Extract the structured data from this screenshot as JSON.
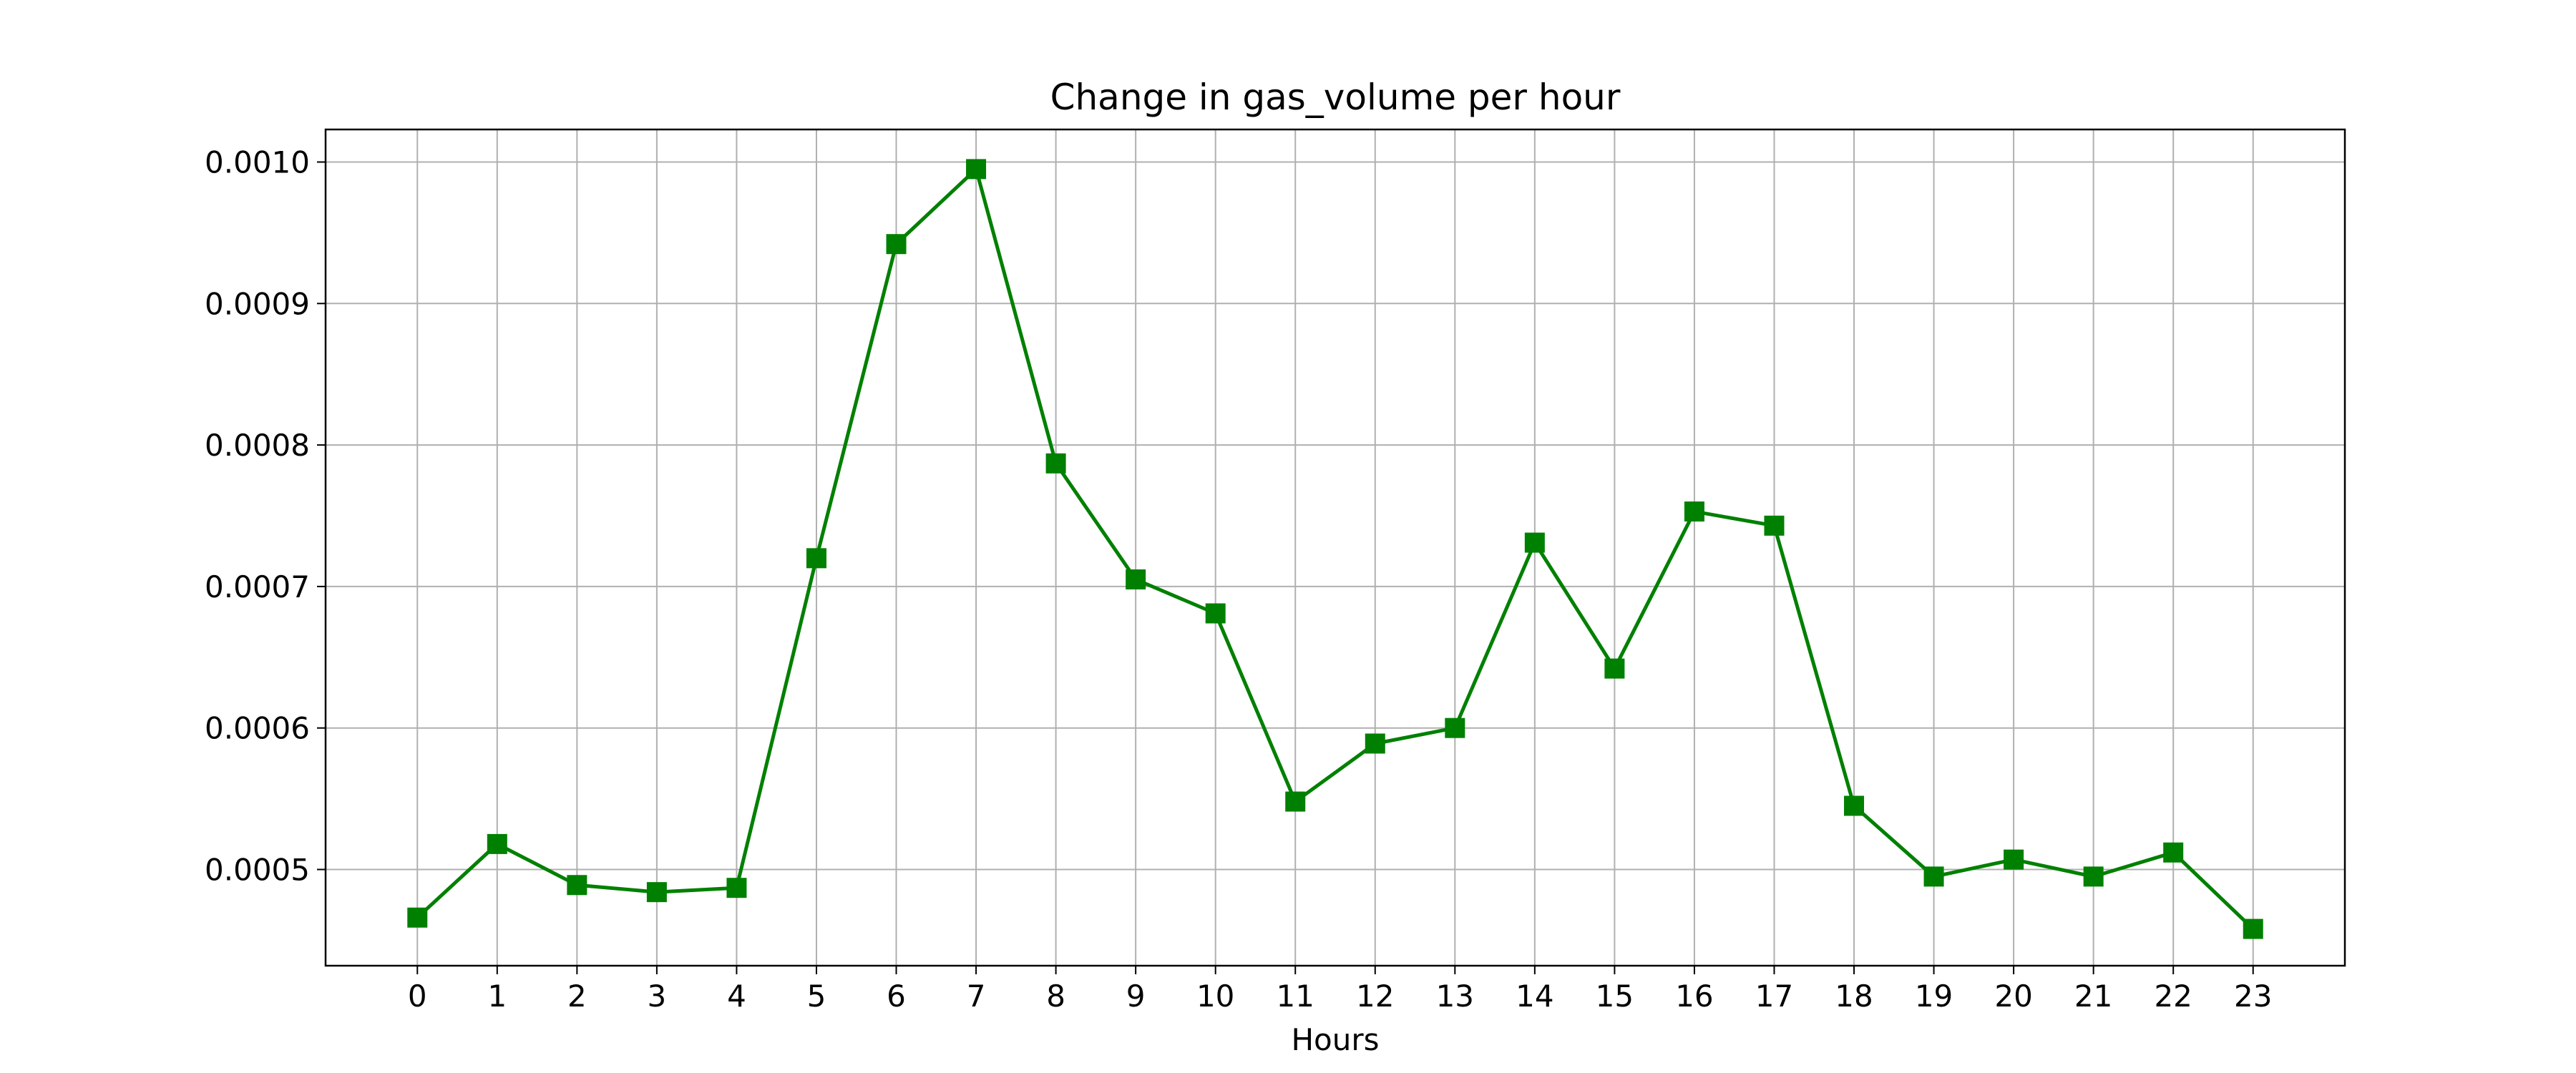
{
  "chart_data": {
    "type": "line",
    "title": "Change in gas_volume per hour",
    "xlabel": "Hours",
    "ylabel": "",
    "x": [
      0,
      1,
      2,
      3,
      4,
      5,
      6,
      7,
      8,
      9,
      10,
      11,
      12,
      13,
      14,
      15,
      16,
      17,
      18,
      19,
      20,
      21,
      22,
      23
    ],
    "x_tick_labels": [
      "0",
      "1",
      "2",
      "3",
      "4",
      "5",
      "6",
      "7",
      "8",
      "9",
      "10",
      "11",
      "12",
      "13",
      "14",
      "15",
      "16",
      "17",
      "18",
      "19",
      "20",
      "21",
      "22",
      "23"
    ],
    "y_ticks": [
      0.0005,
      0.0006,
      0.0007,
      0.0008,
      0.0009,
      0.001
    ],
    "y_tick_labels": [
      "0.0005",
      "0.0006",
      "0.0007",
      "0.0008",
      "0.0009",
      "0.0010"
    ],
    "xlim": [
      -1.15,
      24.15
    ],
    "ylim": [
      0.000432,
      0.001023
    ],
    "grid": true,
    "series": [
      {
        "color": "#008000",
        "marker": "square",
        "values": [
          0.000466,
          0.000518,
          0.000489,
          0.000484,
          0.000487,
          0.00072,
          0.000942,
          0.000995,
          0.000787,
          0.000705,
          0.000681,
          0.000548,
          0.000589,
          0.0006,
          0.000731,
          0.000642,
          0.000753,
          0.000743,
          0.000545,
          0.000495,
          0.000507,
          0.000495,
          0.000512,
          0.000458
        ]
      }
    ]
  }
}
